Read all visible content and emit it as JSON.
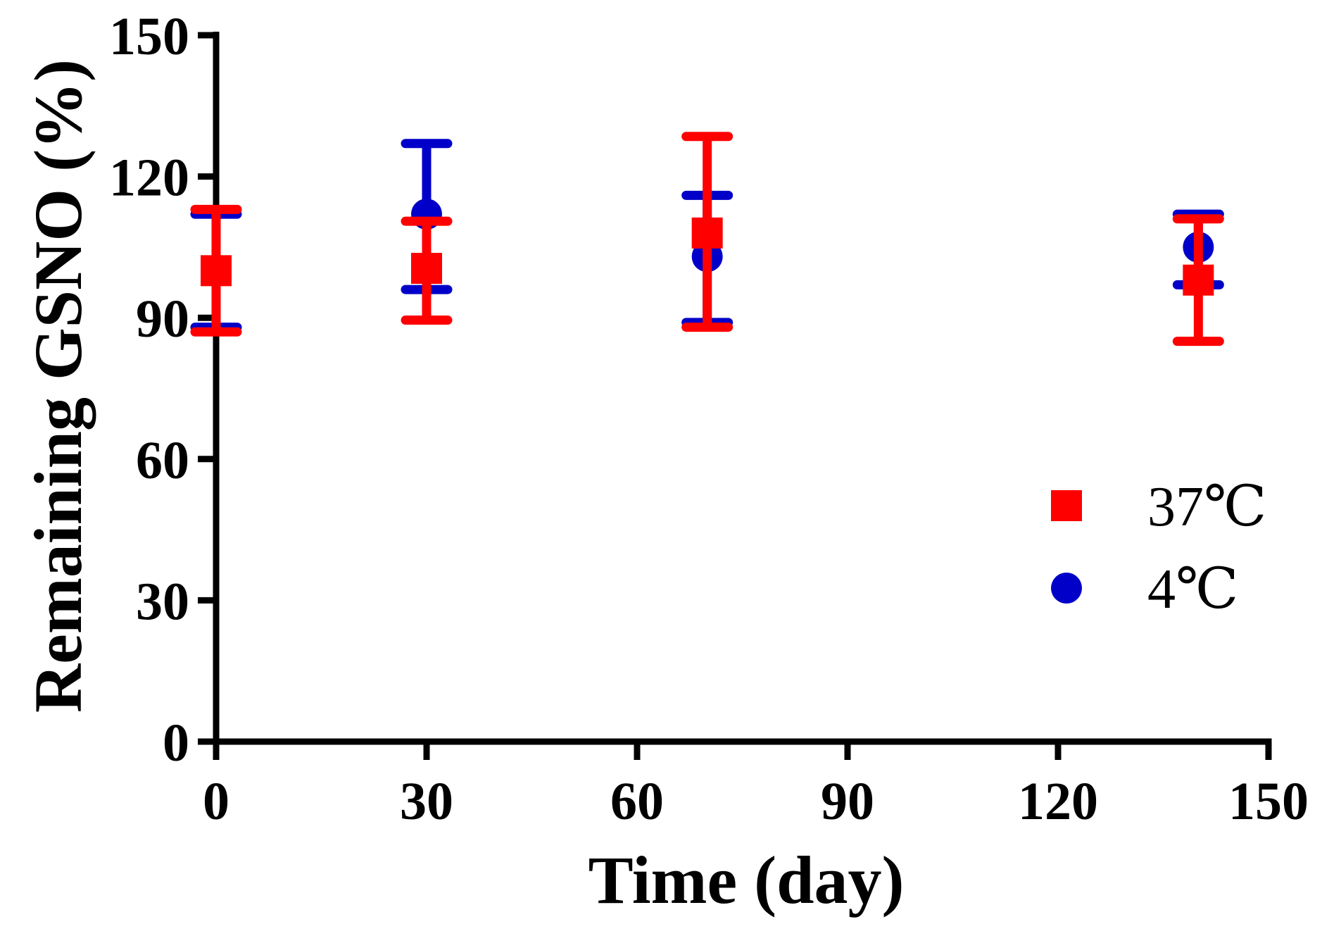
{
  "chart_data": {
    "type": "scatter",
    "xlabel": "Time (day)",
    "ylabel": "Remaining GSNO (%)",
    "xlim": [
      0,
      150
    ],
    "ylim": [
      0,
      150
    ],
    "xticks": [
      "0",
      "30",
      "60",
      "90",
      "120",
      "150"
    ],
    "yticks": [
      "0",
      "30",
      "60",
      "90",
      "120",
      "150"
    ],
    "grid": false,
    "legend_position": "right",
    "series": [
      {
        "name": "4℃",
        "marker": "circle",
        "color": "#0000c8",
        "x": [
          0,
          30,
          70,
          140
        ],
        "y": [
          100,
          112,
          103,
          105
        ],
        "err_low": [
          12,
          16,
          14,
          8
        ],
        "err_high": [
          12,
          15,
          13,
          7
        ]
      },
      {
        "name": "37℃",
        "marker": "square",
        "color": "#ff0000",
        "x": [
          0,
          30,
          70,
          140
        ],
        "y": [
          100,
          100.5,
          108,
          98
        ],
        "err_low": [
          13,
          11,
          20,
          13
        ],
        "err_high": [
          13,
          10,
          20.5,
          13
        ]
      }
    ],
    "legend": [
      "37℃",
      "4℃"
    ]
  }
}
